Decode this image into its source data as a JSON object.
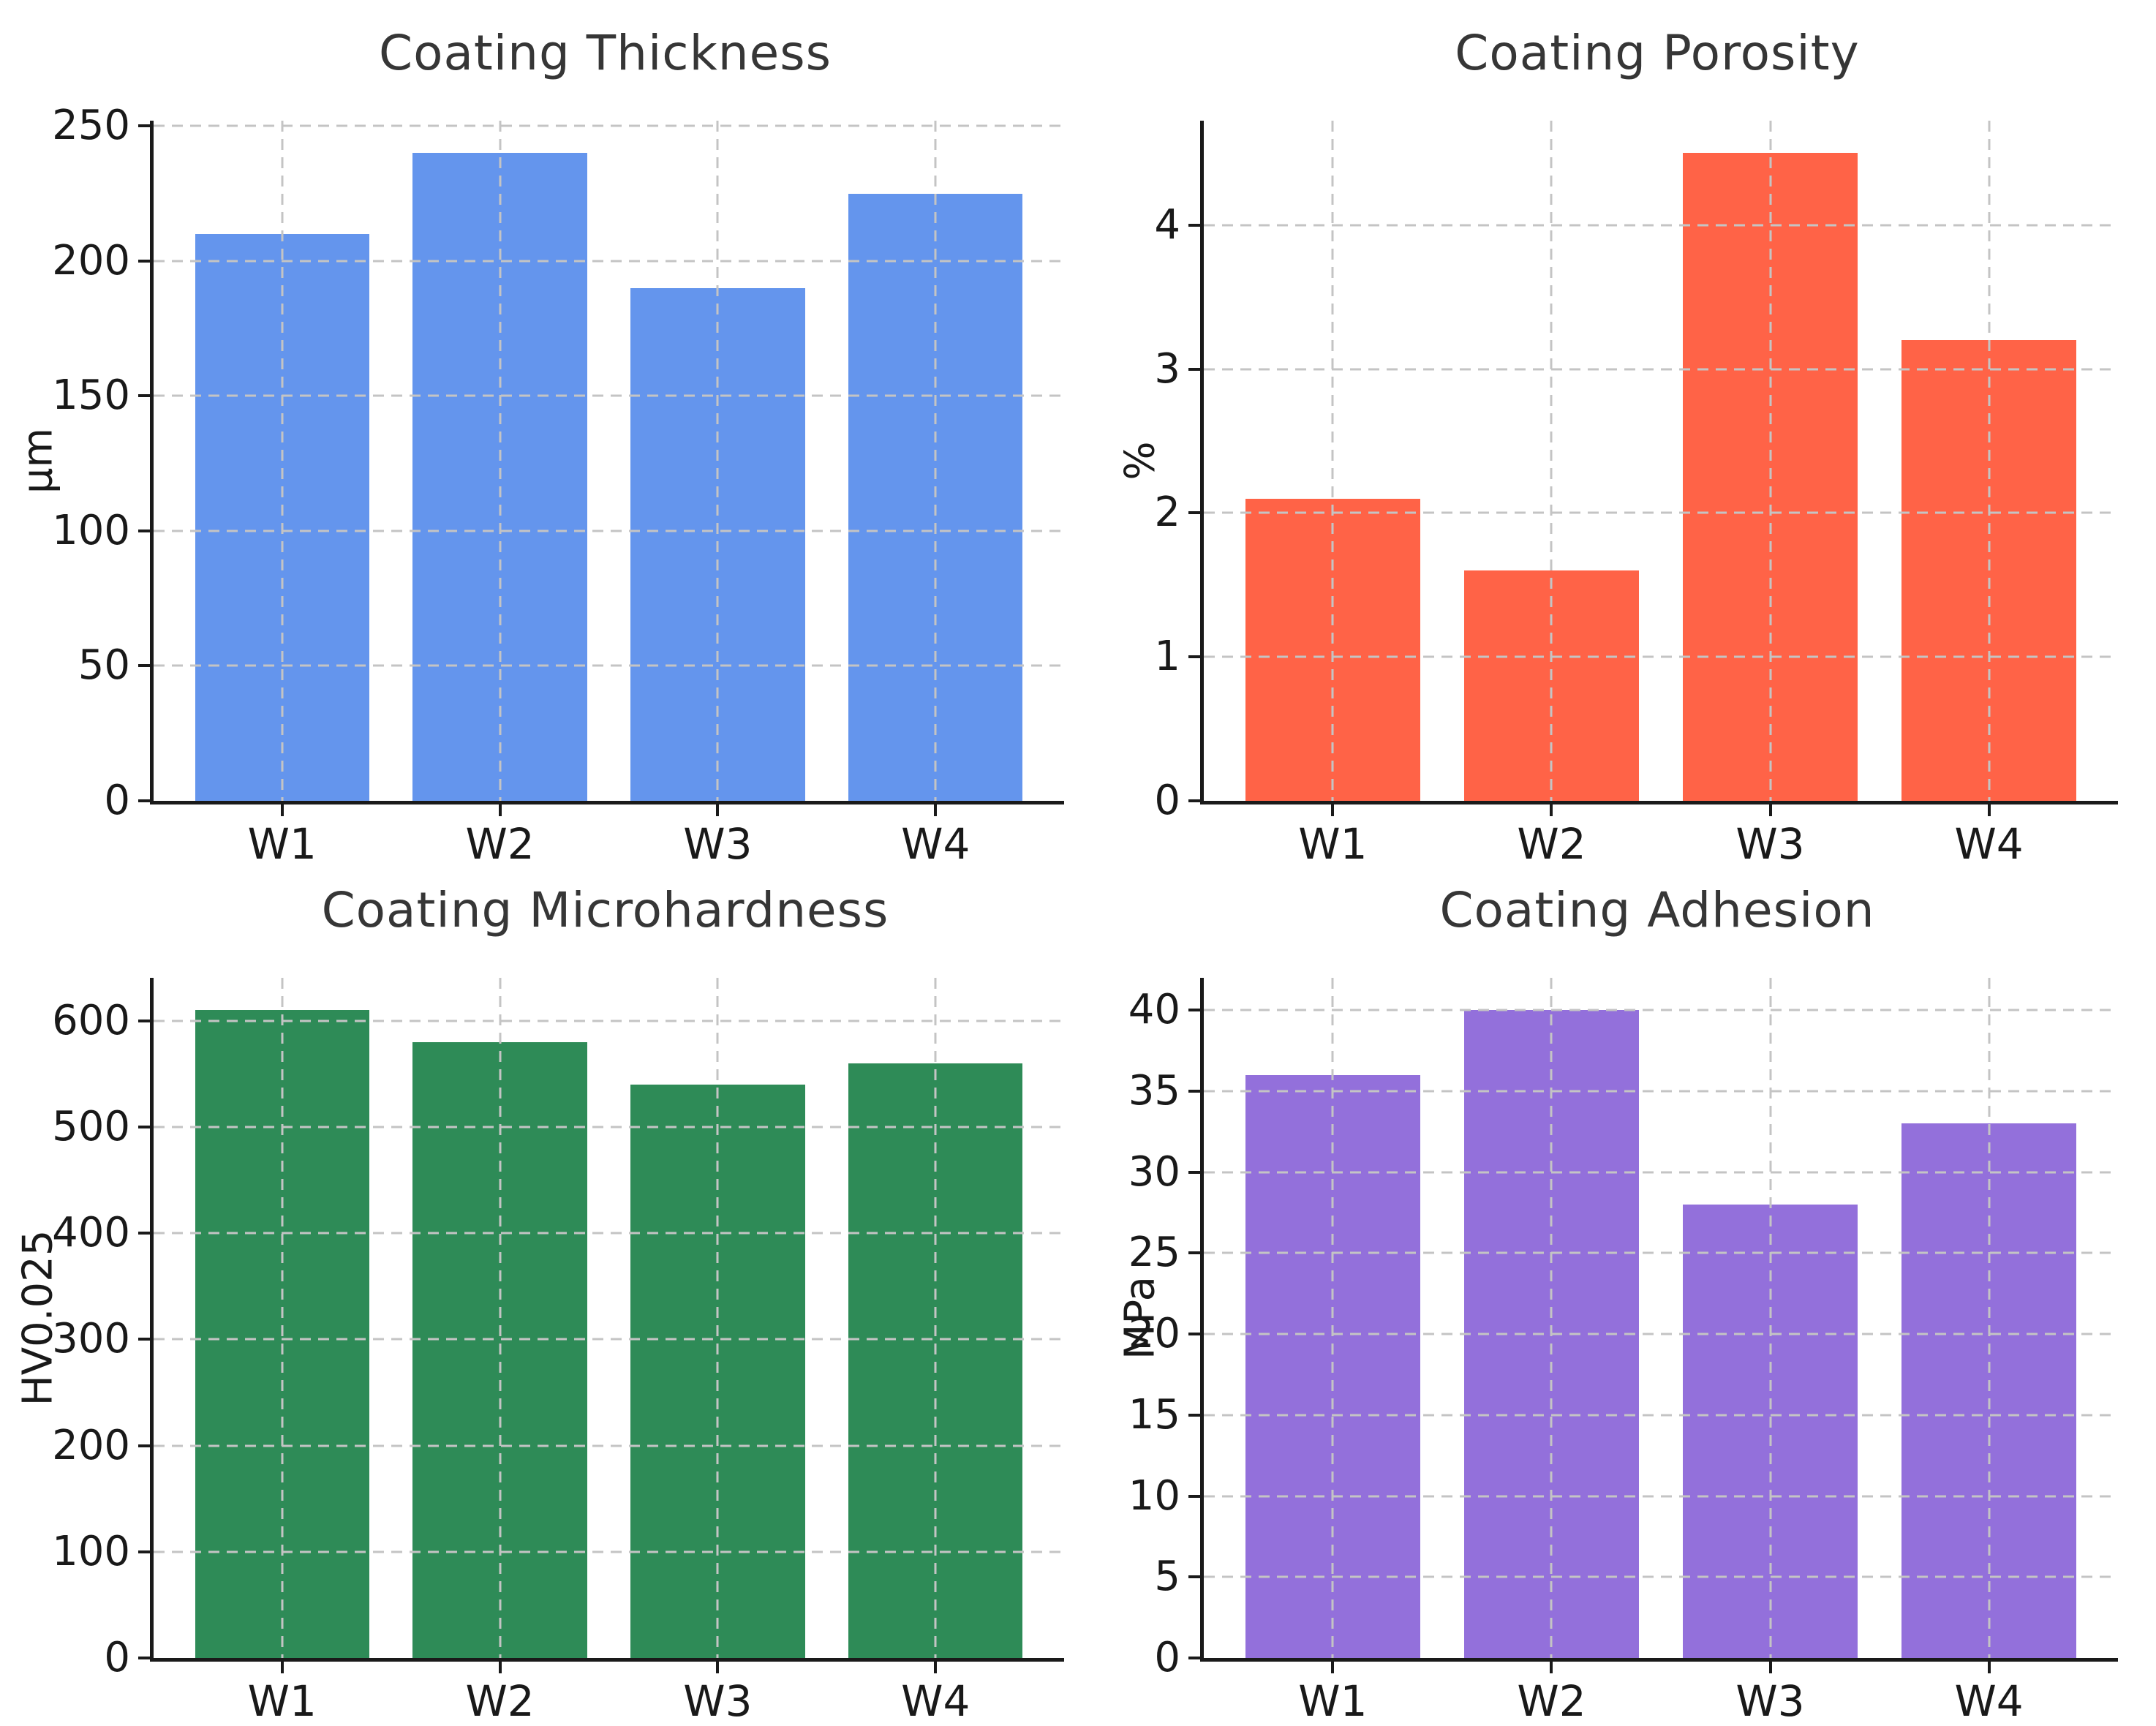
{
  "figure": {
    "background": "#ffffff",
    "grid_color": "#c4c4c4",
    "spine_color": "#1a1a1a",
    "text_color": "#191919",
    "title_color": "#363636"
  },
  "chart_data": [
    {
      "type": "bar",
      "title": "Coating Thickness",
      "ylabel": "μm",
      "categories": [
        "W1",
        "W2",
        "W3",
        "W4"
      ],
      "values": [
        210,
        240,
        190,
        225
      ],
      "yticks": [
        0,
        50,
        100,
        150,
        200,
        250
      ],
      "ylim": [
        0,
        252
      ],
      "bar_color": "#6495ED",
      "grid": "dashed",
      "legend": "none"
    },
    {
      "type": "bar",
      "title": "Coating Porosity",
      "ylabel": "%",
      "categories": [
        "W1",
        "W2",
        "W3",
        "W4"
      ],
      "values": [
        2.1,
        1.6,
        4.5,
        3.2
      ],
      "yticks": [
        0,
        1,
        2,
        3,
        4
      ],
      "ylim": [
        0,
        4.725
      ],
      "bar_color": "#FF6347",
      "grid": "dashed",
      "legend": "none"
    },
    {
      "type": "bar",
      "title": "Coating Microhardness",
      "ylabel": "HV0.025",
      "categories": [
        "W1",
        "W2",
        "W3",
        "W4"
      ],
      "values": [
        610,
        580,
        540,
        560
      ],
      "yticks": [
        0,
        100,
        200,
        300,
        400,
        500,
        600
      ],
      "ylim": [
        0,
        640.5
      ],
      "bar_color": "#2E8B57",
      "grid": "dashed",
      "legend": "none"
    },
    {
      "type": "bar",
      "title": "Coating Adhesion",
      "ylabel": "MPa",
      "categories": [
        "W1",
        "W2",
        "W3",
        "W4"
      ],
      "values": [
        36,
        40,
        28,
        33
      ],
      "yticks": [
        0,
        5,
        10,
        15,
        20,
        25,
        30,
        35,
        40
      ],
      "ylim": [
        0,
        42
      ],
      "bar_color": "#9370DB",
      "grid": "dashed",
      "legend": "none"
    }
  ]
}
